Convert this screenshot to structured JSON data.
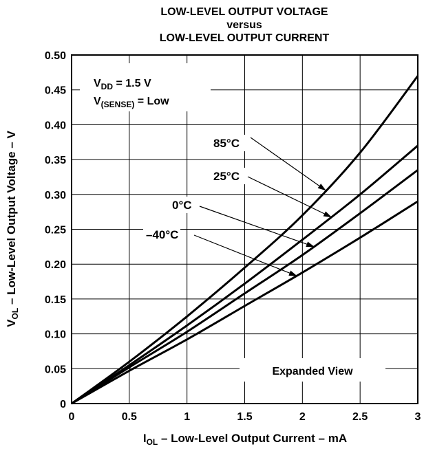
{
  "chart_data": {
    "type": "line",
    "title_lines": [
      "LOW-LEVEL OUTPUT VOLTAGE",
      "versus",
      "LOW-LEVEL OUTPUT CURRENT"
    ],
    "xlabel": {
      "main": "I",
      "sub": "OL",
      "rest": " – Low-Level Output Current – mA"
    },
    "ylabel": {
      "main": "V",
      "sub": "OL",
      "rest": " – Low-Level Output Voltage – V"
    },
    "xlim": [
      0,
      3
    ],
    "ylim": [
      0,
      0.5
    ],
    "x_ticks": [
      0,
      0.5,
      1,
      1.5,
      2,
      2.5,
      3
    ],
    "x_tick_labels": [
      "0",
      "0.5",
      "1",
      "1.5",
      "2",
      "2.5",
      "3"
    ],
    "y_ticks": [
      0,
      0.05,
      0.1,
      0.15,
      0.2,
      0.25,
      0.3,
      0.35,
      0.4,
      0.45,
      0.5
    ],
    "y_tick_labels": [
      "0",
      "0.05",
      "0.10",
      "0.15",
      "0.20",
      "0.25",
      "0.30",
      "0.35",
      "0.40",
      "0.45",
      "0.50"
    ],
    "grid": true,
    "conditions": [
      {
        "main": "V",
        "sub": "DD",
        "rest": " = 1.5 V"
      },
      {
        "main": "V",
        "sub": "(SENSE)",
        "rest": " = Low"
      }
    ],
    "annotation": "Expanded View",
    "series": [
      {
        "name": "85°C",
        "x": [
          0,
          0.5,
          1,
          1.5,
          2,
          2.5,
          3
        ],
        "y": [
          0,
          0.06,
          0.125,
          0.195,
          0.27,
          0.36,
          0.47
        ]
      },
      {
        "name": "25°C",
        "x": [
          0,
          0.5,
          1,
          1.5,
          2,
          2.5,
          3
        ],
        "y": [
          0,
          0.055,
          0.112,
          0.172,
          0.235,
          0.3,
          0.37
        ]
      },
      {
        "name": "0°C",
        "x": [
          0,
          0.5,
          1,
          1.5,
          2,
          2.5,
          3
        ],
        "y": [
          0,
          0.052,
          0.103,
          0.158,
          0.213,
          0.273,
          0.335
        ]
      },
      {
        "name": "–40°C",
        "x": [
          0,
          0.5,
          1,
          1.5,
          2,
          2.5,
          3
        ],
        "y": [
          0,
          0.047,
          0.092,
          0.14,
          0.188,
          0.238,
          0.29
        ]
      }
    ],
    "line_color": "#000000",
    "grid_color": "#000000"
  }
}
